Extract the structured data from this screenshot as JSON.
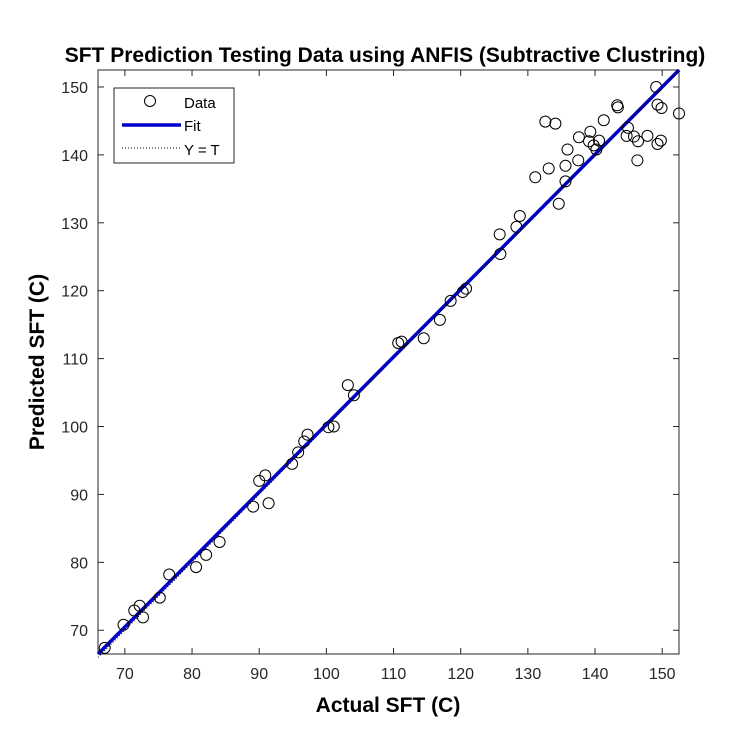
{
  "chart_data": {
    "type": "scatter",
    "title": "SFT Prediction Testing Data using ANFIS (Subtractive Clustring)",
    "xlabel": "Actual SFT (C)",
    "ylabel": "Predicted SFT (C)",
    "xlim": [
      66,
      152.5
    ],
    "ylim": [
      66.5,
      152.5
    ],
    "xticks": [
      70,
      80,
      90,
      100,
      110,
      120,
      130,
      140,
      150
    ],
    "yticks": [
      70,
      80,
      90,
      100,
      110,
      120,
      130,
      140,
      150
    ],
    "grid": false,
    "legend_location": "top-left",
    "legend": [
      "Data",
      "Fit",
      "Y = T"
    ],
    "series": [
      {
        "name": "Data",
        "marker": "circle-open",
        "color": "#000000",
        "points": [
          [
            67.0,
            67.4
          ],
          [
            69.8,
            70.8
          ],
          [
            71.4,
            72.9
          ],
          [
            72.2,
            73.6
          ],
          [
            72.7,
            71.9
          ],
          [
            75.2,
            74.8
          ],
          [
            76.6,
            78.2
          ],
          [
            80.6,
            79.3
          ],
          [
            82.1,
            81.1
          ],
          [
            84.1,
            83.0
          ],
          [
            89.1,
            88.2
          ],
          [
            90.0,
            92.0
          ],
          [
            90.9,
            92.8
          ],
          [
            91.4,
            88.7
          ],
          [
            94.9,
            94.5
          ],
          [
            95.8,
            96.2
          ],
          [
            96.7,
            97.8
          ],
          [
            97.2,
            98.8
          ],
          [
            100.3,
            99.9
          ],
          [
            101.1,
            100.0
          ],
          [
            103.2,
            106.1
          ],
          [
            104.1,
            104.6
          ],
          [
            110.7,
            112.3
          ],
          [
            111.2,
            112.5
          ],
          [
            114.5,
            113.0
          ],
          [
            116.9,
            115.7
          ],
          [
            118.5,
            118.5
          ],
          [
            120.3,
            119.8
          ],
          [
            120.8,
            120.3
          ],
          [
            125.8,
            128.3
          ],
          [
            125.9,
            125.4
          ],
          [
            128.3,
            129.4
          ],
          [
            128.8,
            131.0
          ],
          [
            131.1,
            136.7
          ],
          [
            132.6,
            144.9
          ],
          [
            133.1,
            138.0
          ],
          [
            134.1,
            144.6
          ],
          [
            134.6,
            132.8
          ],
          [
            135.6,
            136.1
          ],
          [
            135.6,
            138.4
          ],
          [
            135.9,
            140.8
          ],
          [
            137.5,
            139.2
          ],
          [
            137.6,
            142.6
          ],
          [
            139.1,
            142.0
          ],
          [
            139.3,
            143.4
          ],
          [
            139.8,
            141.4
          ],
          [
            140.2,
            140.8
          ],
          [
            140.6,
            142.1
          ],
          [
            141.3,
            145.1
          ],
          [
            143.3,
            147.3
          ],
          [
            143.4,
            147.0
          ],
          [
            144.7,
            142.8
          ],
          [
            144.9,
            144.0
          ],
          [
            145.8,
            142.7
          ],
          [
            146.3,
            139.2
          ],
          [
            146.4,
            142.0
          ],
          [
            147.8,
            142.8
          ],
          [
            149.1,
            150.0
          ],
          [
            149.3,
            147.4
          ],
          [
            149.3,
            141.6
          ],
          [
            149.8,
            142.1
          ],
          [
            149.9,
            146.9
          ],
          [
            152.5,
            146.1
          ]
        ]
      },
      {
        "name": "Fit",
        "type": "line",
        "color": "#0000cc",
        "points": [
          [
            66.0,
            66.5
          ],
          [
            152.5,
            152.5
          ]
        ]
      },
      {
        "name": "Y = T",
        "type": "line",
        "style": "dotted",
        "color": "#000000",
        "points": [
          [
            66.0,
            66.0
          ],
          [
            152.5,
            152.5
          ]
        ]
      }
    ]
  }
}
